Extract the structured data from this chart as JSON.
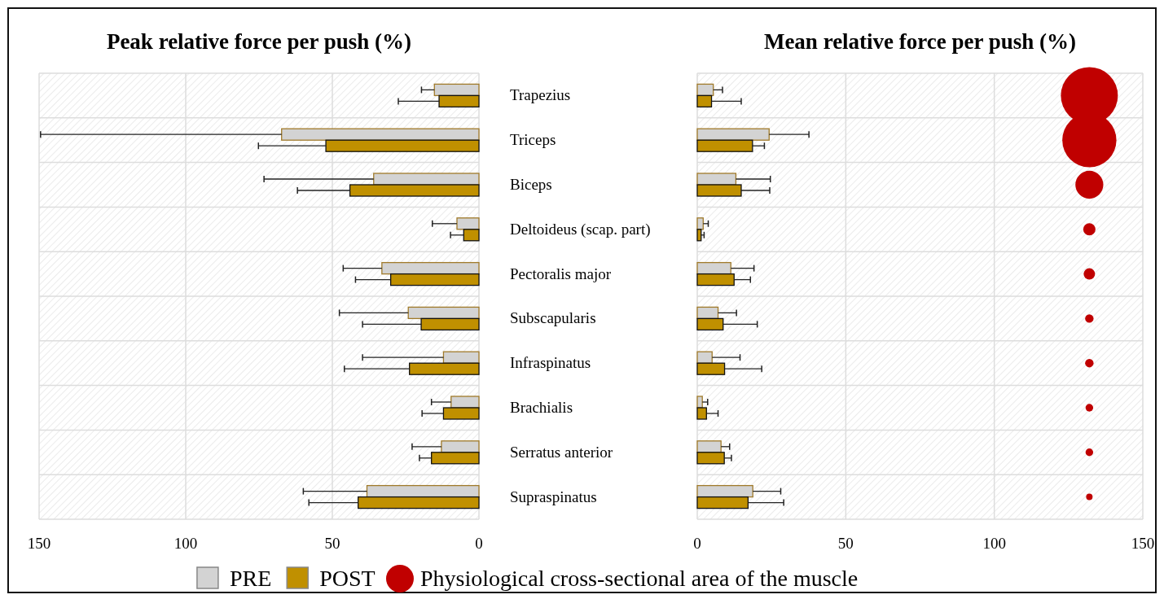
{
  "chart_data": [
    {
      "type": "bar",
      "orientation": "horizontal",
      "title": "Peak relative force per push (%)",
      "categories": [
        "Trapezius",
        "Triceps",
        "Biceps",
        "Deltoideus (scap. part)",
        "Pectoralis major",
        "Subscapularis",
        "Infraspinatus",
        "Brachialis",
        "Serratus anterior",
        "Supraspinatus"
      ],
      "series": [
        {
          "color": "#d3d3d3",
          "values": [
            15.2,
            67.3,
            35.9,
            7.5,
            33.1,
            24.1,
            12.1,
            9.5,
            12.8,
            38.2
          ],
          "errors": [
            [
              15.2,
              19.6
            ],
            [
              67.3,
              149.5
            ],
            [
              35.9,
              73.3
            ],
            [
              7.5,
              15.9
            ],
            [
              33.1,
              46.3
            ],
            [
              24.1,
              47.6
            ],
            [
              12.1,
              39.7
            ],
            [
              9.5,
              16.2
            ],
            [
              12.8,
              22.8
            ],
            [
              38.2,
              59.9
            ]
          ]
        },
        {
          "color": "#c09000",
          "values": [
            13.6,
            52.2,
            44,
            5.2,
            30.1,
            19.7,
            23.7,
            12.1,
            16.2,
            41.2
          ],
          "errors": [
            [
              13.6,
              27.5
            ],
            [
              52.2,
              75.2
            ],
            [
              44,
              61.9
            ],
            [
              5.2,
              9.7
            ],
            [
              30.1,
              42.1
            ],
            [
              19.7,
              39.7
            ],
            [
              23.7,
              45.9
            ],
            [
              12.1,
              19.4
            ],
            [
              16.2,
              20.3
            ],
            [
              41.2,
              58
            ]
          ]
        }
      ],
      "xlim": [
        150,
        0
      ],
      "xticks": [
        150,
        100,
        50,
        0
      ],
      "grid": true
    },
    {
      "type": "bar",
      "orientation": "horizontal",
      "title": "Mean relative force per push (%)",
      "categories": [
        null,
        null,
        null,
        null,
        null,
        null,
        null,
        null,
        null,
        null
      ],
      "series": [
        {
          "name": "PRE",
          "color": "#d3d3d3",
          "values": [
            5.4,
            24.2,
            13,
            2,
            11.3,
            7,
            5,
            1.7,
            8,
            18.7
          ],
          "errors": [
            [
              5.4,
              8.5
            ],
            [
              24.2,
              37.6
            ],
            [
              13,
              24.6
            ],
            [
              2,
              3.7
            ],
            [
              11.3,
              19.1
            ],
            [
              7,
              13.2
            ],
            [
              5,
              14.4
            ],
            [
              1.7,
              3.5
            ],
            [
              8,
              10.9
            ],
            [
              18.7,
              28.1
            ]
          ]
        },
        {
          "name": "POST",
          "color": "#c09000",
          "values": [
            4.8,
            18.6,
            14.8,
            1.3,
            12.4,
            8.7,
            9.2,
            3.1,
            9.1,
            17.1
          ],
          "errors": [
            [
              4.8,
              14.8
            ],
            [
              18.6,
              22.6
            ],
            [
              14.8,
              24.4
            ],
            [
              1.3,
              2.3
            ],
            [
              12.4,
              17.9
            ],
            [
              8.7,
              20.2
            ],
            [
              9.2,
              21.7
            ],
            [
              3.1,
              7
            ],
            [
              9.1,
              11.5
            ],
            [
              17.1,
              29.1
            ]
          ]
        },
        {
          "type": "bubble",
          "name": "Physiological cross-sectional area of the muscle",
          "color": "#c00000",
          "values": [
            132,
            132,
            132,
            132,
            132,
            132,
            132,
            132,
            132,
            132
          ],
          "sizes": [
            1,
            0.9,
            0.24,
            0.046,
            0.04,
            0.022,
            0.022,
            0.018,
            0.018,
            0.013
          ]
        }
      ],
      "xlim": [
        0,
        150
      ],
      "xticks": [
        0,
        50,
        100,
        150
      ],
      "grid": true,
      "legend": "bottom"
    }
  ]
}
